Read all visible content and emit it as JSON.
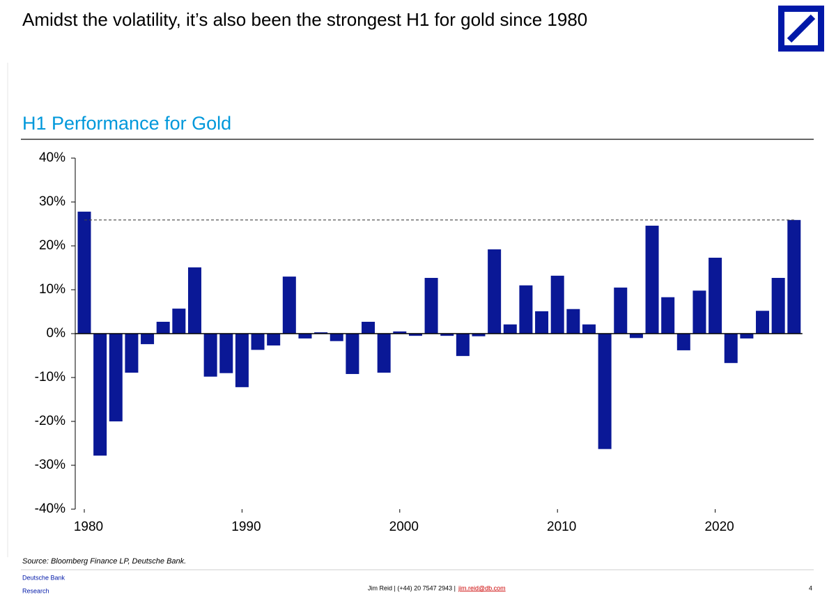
{
  "header": {
    "title": "Amidst the volatility, it’s also been the strongest H1 for gold since 1980"
  },
  "chart_data": {
    "type": "bar",
    "title": "H1 Performance for Gold",
    "categories": [
      "1980",
      null,
      null,
      null,
      null,
      null,
      null,
      null,
      null,
      null,
      "1990",
      null,
      null,
      null,
      null,
      null,
      null,
      null,
      null,
      null,
      "2000",
      null,
      null,
      null,
      null,
      null,
      null,
      null,
      null,
      null,
      "2010",
      null,
      null,
      null,
      null,
      null,
      null,
      null,
      null,
      null,
      "2020",
      null,
      null,
      null,
      null,
      null
    ],
    "values": [
      27.8,
      -27.8,
      -20,
      -8.9,
      -2.4,
      2.7,
      5.7,
      15.1,
      -9.8,
      -9,
      -12.2,
      -3.7,
      -2.7,
      13,
      -1.1,
      0.3,
      -1.7,
      -9.2,
      2.7,
      -8.9,
      0.5,
      -0.5,
      12.7,
      -0.5,
      -5.1,
      -0.6,
      19.2,
      2.1,
      11,
      5.1,
      13.2,
      5.6,
      2.1,
      -26.3,
      10.5,
      -1,
      24.6,
      8.3,
      -3.8,
      9.8,
      17.3,
      -6.7,
      -1.1,
      5.2,
      12.7,
      25.9
    ],
    "color": "#0a1896",
    "ylim": [
      -40,
      40
    ],
    "yticks": [
      {
        "value": -40,
        "label": "-40%"
      },
      {
        "value": -30,
        "label": "-30%"
      },
      {
        "value": -20,
        "label": "-20%"
      },
      {
        "value": -10,
        "label": "-10%"
      },
      {
        "value": 0,
        "label": "0%"
      },
      {
        "value": 10,
        "label": "10%"
      },
      {
        "value": 20,
        "label": "20%"
      },
      {
        "value": 30,
        "label": "30%"
      },
      {
        "value": 40,
        "label": "40%"
      }
    ],
    "grid": false,
    "source": "Source: Bloomberg Finance LP, Deutsche Bank."
  },
  "footer": {
    "brand": "Deutsche Bank",
    "unit": "Research",
    "contact": "Jim Reid | (+44) 20 7547 2943 |",
    "email": "jim.reid@db.com",
    "page": "4"
  }
}
